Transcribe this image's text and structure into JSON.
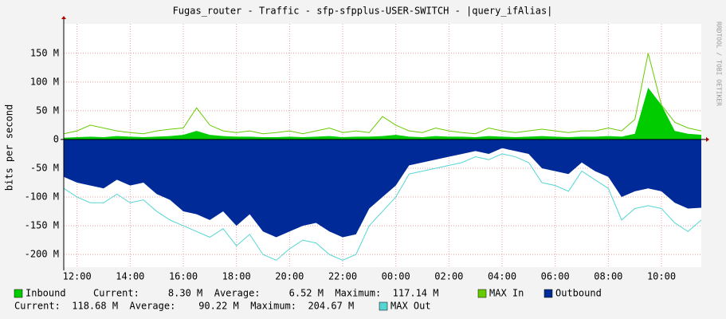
{
  "chart_data": {
    "type": "rrd-area",
    "title": "Fugas_router - Traffic - sfp-sfpplus-USER-SWITCH - |query_ifAlias|",
    "y_label": "bits per second",
    "watermark": "RRDTOOL / TOBI OETIKER",
    "categories": [
      null,
      "12:00",
      null,
      null,
      null,
      "14:00",
      null,
      null,
      null,
      "16:00",
      null,
      null,
      null,
      "18:00",
      null,
      null,
      null,
      "20:00",
      null,
      null,
      null,
      "22:00",
      null,
      null,
      null,
      "00:00",
      null,
      null,
      null,
      "02:00",
      null,
      null,
      null,
      "04:00",
      null,
      null,
      null,
      "06:00",
      null,
      null,
      null,
      "08:00",
      null,
      null,
      null,
      "10:00",
      null,
      null,
      null
    ],
    "ylim": [
      -222,
      201
    ],
    "yticks": [
      {
        "value": 150,
        "label": "150 M"
      },
      {
        "value": 100,
        "label": "100 M"
      },
      {
        "value": 50,
        "label": "50 M"
      },
      0,
      {
        "value": -50,
        "label": "-50 M"
      },
      {
        "value": -100,
        "label": "-100 M"
      },
      {
        "value": -150,
        "label": "-150 M"
      },
      {
        "value": -200,
        "label": "-200 M"
      }
    ],
    "grid": true,
    "series": [
      {
        "name": "Outbound",
        "color": "#002a97",
        "draw": "area",
        "summary": "Current:  118.68 M  Average:    90.22 M  Maximum:  204.67 M",
        "values": [
          -65,
          -75,
          -80,
          -85,
          -70,
          -80,
          -75,
          -95,
          -105,
          -125,
          -130,
          -140,
          -125,
          -150,
          -130,
          -160,
          -170,
          -160,
          -150,
          -145,
          -160,
          -170,
          -165,
          -120,
          -100,
          -80,
          -45,
          -40,
          -35,
          -30,
          -25,
          -20,
          -25,
          -15,
          -20,
          -25,
          -50,
          -55,
          -60,
          -40,
          -55,
          -65,
          -100,
          -90,
          -85,
          -90,
          -110,
          -120,
          -118.68
        ]
      },
      {
        "name": "MAX Out",
        "color": "#55d6d3",
        "draw": "line",
        "values": [
          -85,
          -100,
          -110,
          -110,
          -95,
          -110,
          -105,
          -125,
          -140,
          -150,
          -160,
          -170,
          -155,
          -185,
          -165,
          -200,
          -210,
          -190,
          -175,
          -180,
          -200,
          -210,
          -200,
          -150,
          -125,
          -100,
          -60,
          -55,
          -50,
          -45,
          -40,
          -30,
          -35,
          -25,
          -30,
          -40,
          -75,
          -80,
          -90,
          -55,
          -70,
          -85,
          -140,
          -120,
          -115,
          -120,
          -145,
          -160,
          -140
        ]
      },
      {
        "name": "Inbound",
        "color": "#00cc00",
        "draw": "area",
        "summary": "Current:     8.30 M  Average:     6.52 M  Maximum:  117.14 M",
        "values": [
          3,
          4,
          5,
          4,
          6,
          5,
          4,
          5,
          6,
          8,
          15,
          8,
          6,
          5,
          5,
          4,
          4,
          5,
          4,
          5,
          6,
          4,
          5,
          5,
          6,
          8,
          5,
          4,
          6,
          5,
          5,
          4,
          6,
          5,
          4,
          5,
          6,
          5,
          4,
          5,
          5,
          6,
          5,
          10,
          90,
          60,
          15,
          10,
          8.3
        ]
      },
      {
        "name": "MAX In",
        "color": "#66cc00",
        "draw": "line",
        "values": [
          10,
          15,
          25,
          20,
          15,
          12,
          10,
          15,
          18,
          20,
          55,
          25,
          15,
          12,
          15,
          10,
          12,
          15,
          10,
          15,
          20,
          12,
          15,
          12,
          40,
          25,
          15,
          12,
          20,
          15,
          12,
          10,
          20,
          15,
          12,
          15,
          18,
          15,
          12,
          15,
          15,
          20,
          15,
          35,
          150,
          60,
          30,
          20,
          15
        ]
      }
    ]
  }
}
